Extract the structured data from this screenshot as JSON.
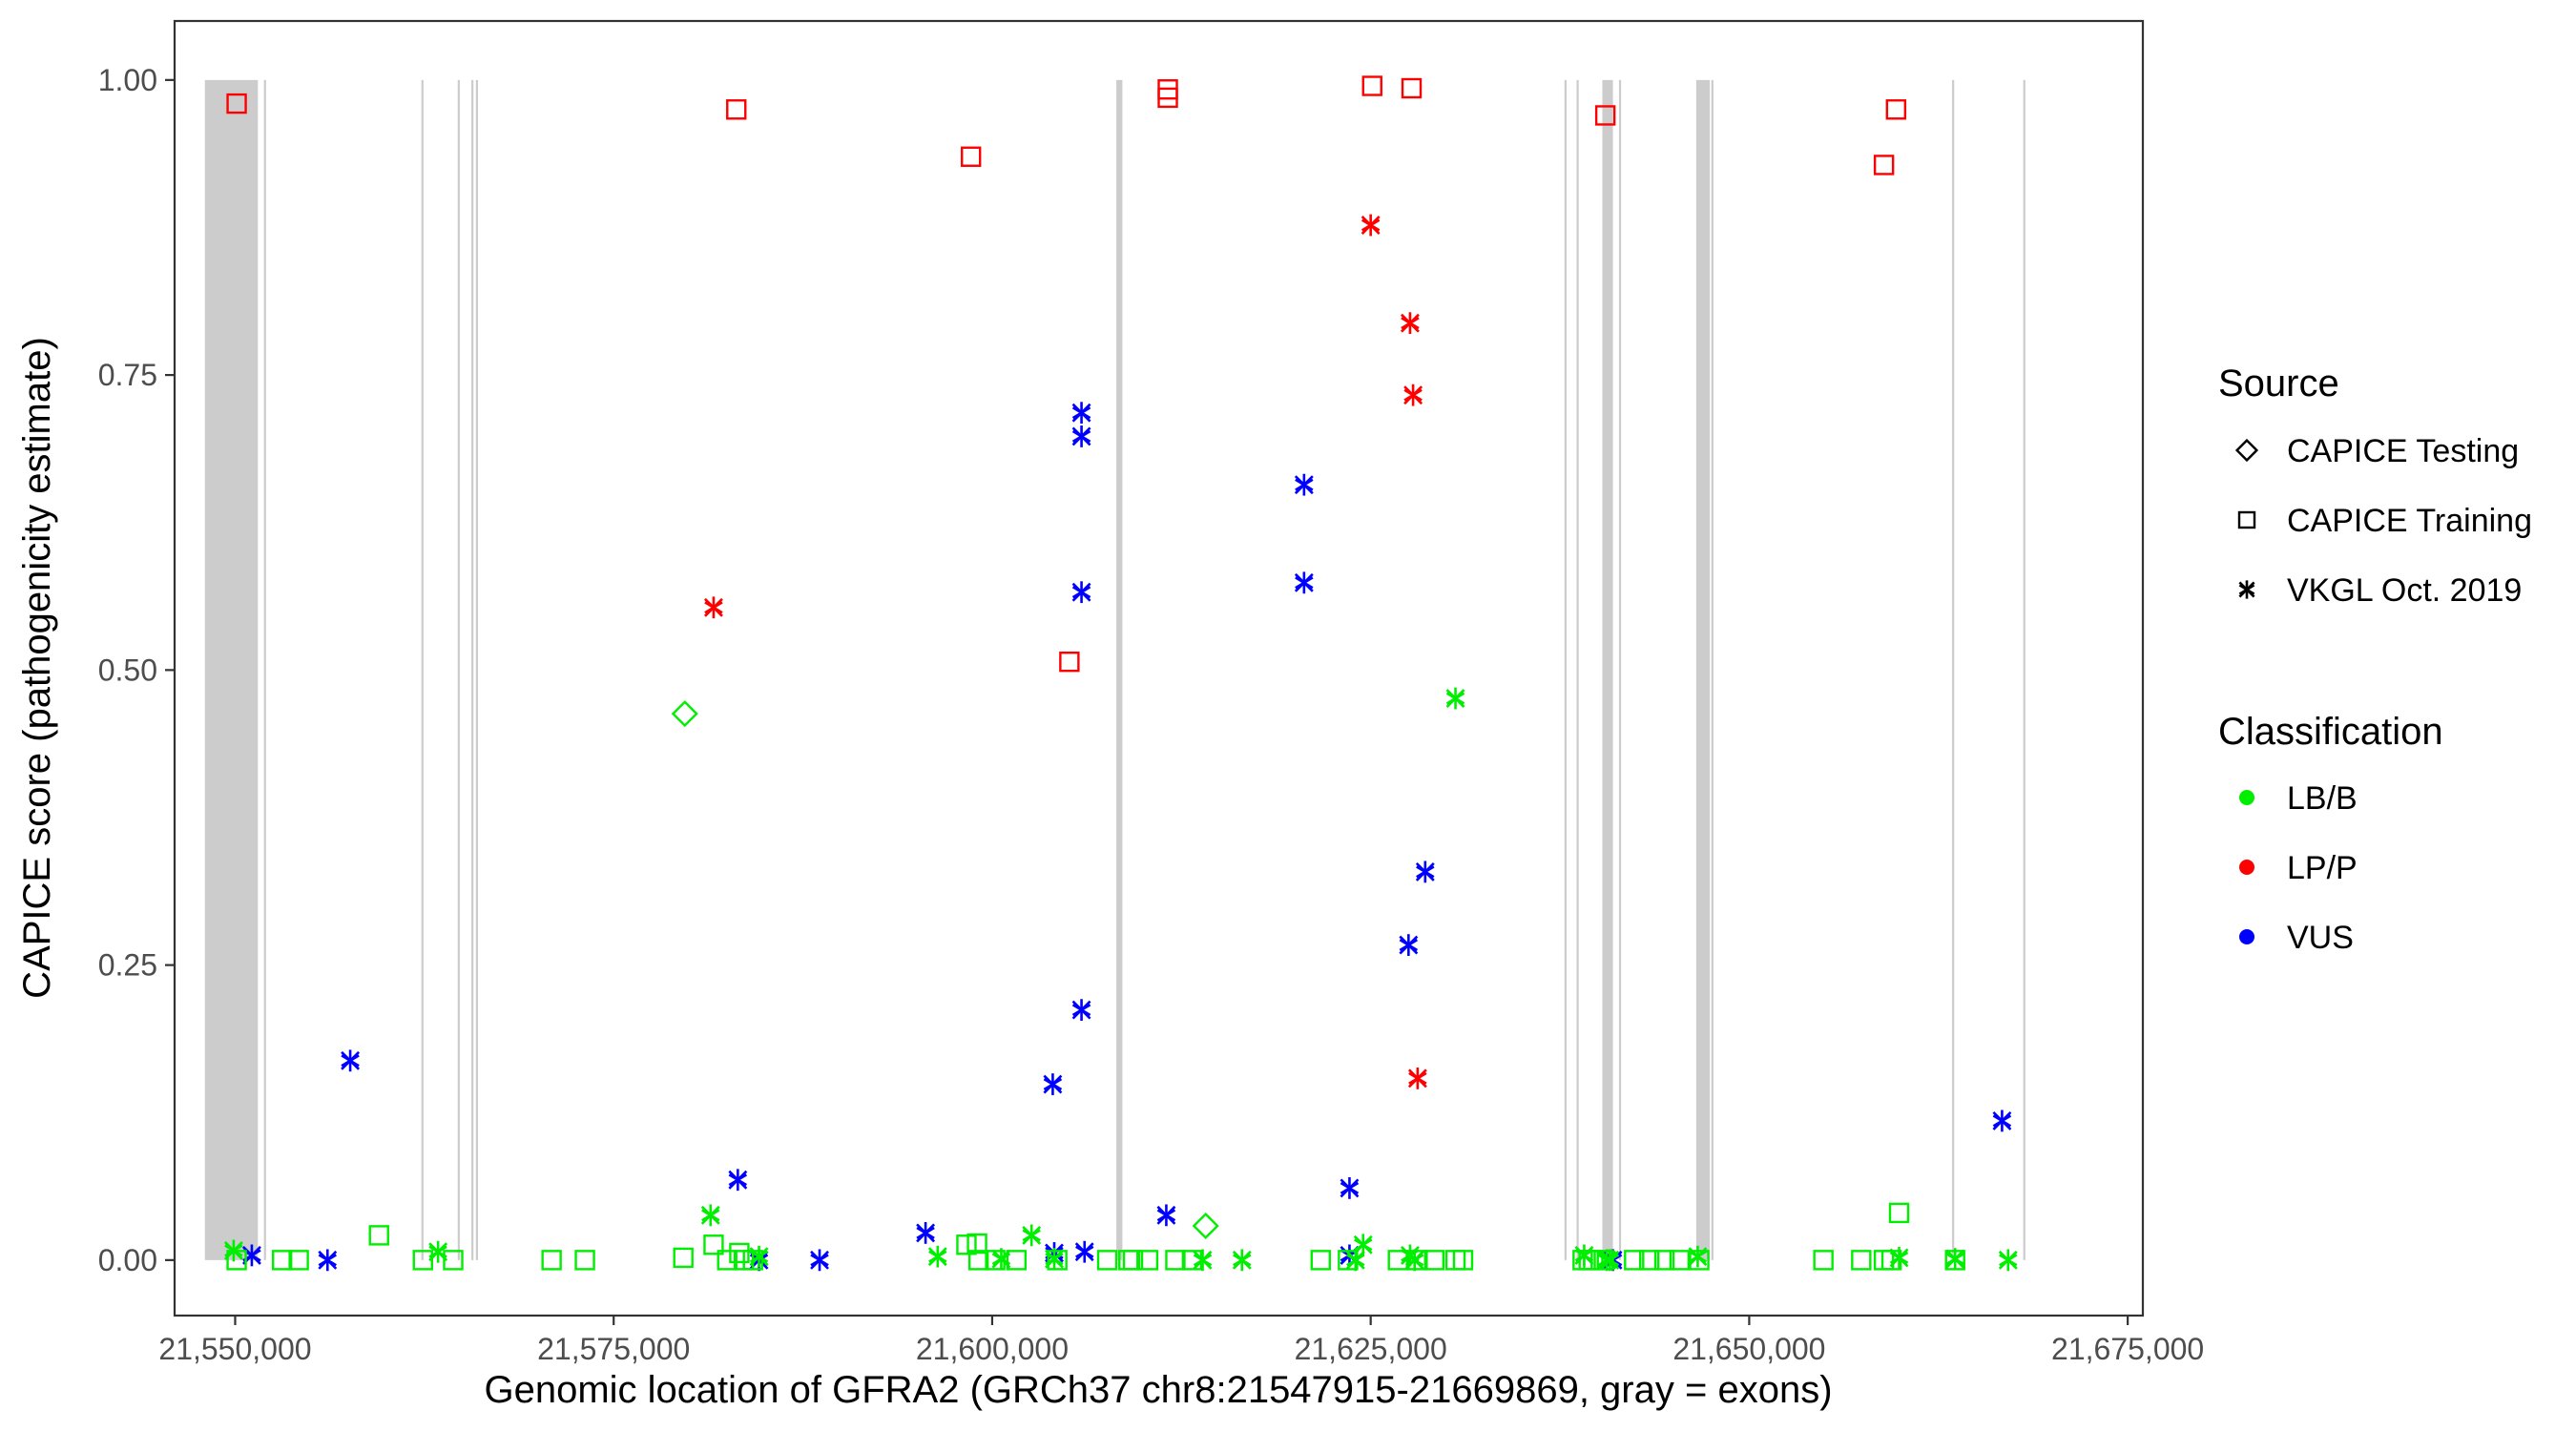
{
  "chart_data": {
    "type": "scatter",
    "xlabel": "Genomic location of GFRA2 (GRCh37 chr8:21547915-21669869, gray = exons)",
    "ylabel": "CAPICE score (pathogenicity estimate)",
    "xlim": [
      21546000,
      21676000
    ],
    "ylim": [
      -0.047,
      1.05
    ],
    "x_ticks": [
      21550000,
      21575000,
      21600000,
      21625000,
      21650000,
      21675000
    ],
    "x_tick_labels": [
      "21,550,000",
      "21,575,000",
      "21,600,000",
      "21,625,000",
      "21,650,000",
      "21,675,000"
    ],
    "y_ticks": [
      0,
      0.25,
      0.5,
      0.75,
      1.0
    ],
    "y_tick_labels": [
      "0.00",
      "0.25",
      "0.50",
      "0.75",
      "1.00"
    ],
    "grid": false,
    "exons": [
      [
        21548000,
        21551500
      ],
      [
        21551900,
        21552000
      ],
      [
        21562300,
        21562400
      ],
      [
        21564700,
        21564800
      ],
      [
        21565600,
        21565700
      ],
      [
        21565900,
        21566000
      ],
      [
        21608200,
        21608600
      ],
      [
        21637800,
        21637900
      ],
      [
        21638600,
        21638700
      ],
      [
        21640300,
        21641000
      ],
      [
        21641400,
        21641500
      ],
      [
        21646500,
        21647400
      ],
      [
        21647500,
        21647600
      ],
      [
        21663400,
        21663500
      ],
      [
        21668100,
        21668200
      ]
    ],
    "legend": {
      "placement": "right",
      "source_title": "Source",
      "source_items": [
        {
          "label": "CAPICE Testing",
          "shape": "diamond"
        },
        {
          "label": "CAPICE Training",
          "shape": "square"
        },
        {
          "label": "VKGL Oct. 2019",
          "shape": "asterisk"
        }
      ],
      "class_title": "Classification",
      "class_items": [
        {
          "label": "LB/B",
          "color": "#00ee00"
        },
        {
          "label": "LP/P",
          "color": "#ff0000"
        },
        {
          "label": "VUS",
          "color": "#0000ff"
        }
      ]
    },
    "colors": {
      "LB/B": "#00ee00",
      "LP/P": "#ff0000",
      "VUS": "#0000ff"
    },
    "series": [
      {
        "source": "CAPICE Training",
        "classification": "LP/P",
        "points": [
          [
            21550100,
            0.98
          ],
          [
            21583100,
            0.975
          ],
          [
            21598600,
            0.935
          ],
          [
            21605100,
            0.507
          ],
          [
            21611600,
            0.985
          ],
          [
            21611600,
            0.992
          ],
          [
            21625100,
            0.995
          ],
          [
            21627700,
            0.993
          ],
          [
            21640500,
            0.97
          ],
          [
            21658900,
            0.928
          ],
          [
            21659700,
            0.975
          ]
        ]
      },
      {
        "source": "VKGL Oct. 2019",
        "classification": "LP/P",
        "points": [
          [
            21581600,
            0.553
          ],
          [
            21625000,
            0.877
          ],
          [
            21627600,
            0.794
          ],
          [
            21627800,
            0.733
          ],
          [
            21628100,
            0.154
          ]
        ]
      },
      {
        "source": "VKGL Oct. 2019",
        "classification": "VUS",
        "points": [
          [
            21551100,
            0.004
          ],
          [
            21556100,
            0.0
          ],
          [
            21557600,
            0.169
          ],
          [
            21583200,
            0.068
          ],
          [
            21584600,
            0.0
          ],
          [
            21588600,
            0.0
          ],
          [
            21595600,
            0.023
          ],
          [
            21604000,
            0.149
          ],
          [
            21604100,
            0.006
          ],
          [
            21605900,
            0.718
          ],
          [
            21605900,
            0.698
          ],
          [
            21605900,
            0.566
          ],
          [
            21605900,
            0.212
          ],
          [
            21606100,
            0.007
          ],
          [
            21611500,
            0.038
          ],
          [
            21620600,
            0.657
          ],
          [
            21620600,
            0.574
          ],
          [
            21623600,
            0.061
          ],
          [
            21623600,
            0.004
          ],
          [
            21627500,
            0.267
          ],
          [
            21628600,
            0.329
          ],
          [
            21641000,
            0.0
          ],
          [
            21666700,
            0.118
          ]
        ]
      },
      {
        "source": "VKGL Oct. 2019",
        "classification": "LB/B",
        "points": [
          [
            21549900,
            0.008
          ],
          [
            21563400,
            0.007
          ],
          [
            21581400,
            0.038
          ],
          [
            21584600,
            0.003
          ],
          [
            21596400,
            0.003
          ],
          [
            21600600,
            0.001
          ],
          [
            21602600,
            0.021
          ],
          [
            21604100,
            0.001
          ],
          [
            21613900,
            0.0
          ],
          [
            21616500,
            0.0
          ],
          [
            21624000,
            0.0
          ],
          [
            21624500,
            0.013
          ],
          [
            21627600,
            0.004
          ],
          [
            21627900,
            0.0
          ],
          [
            21630600,
            0.476
          ],
          [
            21639100,
            0.004
          ],
          [
            21640600,
            0.0
          ],
          [
            21640800,
            0.0
          ],
          [
            21646600,
            0.003
          ],
          [
            21659900,
            0.002
          ],
          [
            21663600,
            0.001
          ],
          [
            21667100,
            0.0
          ]
        ]
      },
      {
        "source": "CAPICE Training",
        "classification": "LB/B",
        "points": [
          [
            21550100,
            0.0
          ],
          [
            21553100,
            0.0
          ],
          [
            21554200,
            0.0
          ],
          [
            21559500,
            0.021
          ],
          [
            21562400,
            0.0
          ],
          [
            21564400,
            0.0
          ],
          [
            21570900,
            0.0
          ],
          [
            21573100,
            0.0
          ],
          [
            21579600,
            0.002
          ],
          [
            21581600,
            0.013
          ],
          [
            21582500,
            0.0
          ],
          [
            21583300,
            0.006
          ],
          [
            21583600,
            0.0
          ],
          [
            21584200,
            0.0
          ],
          [
            21598300,
            0.013
          ],
          [
            21599000,
            0.014
          ],
          [
            21599100,
            0.0
          ],
          [
            21600200,
            0.0
          ],
          [
            21601600,
            0.0
          ],
          [
            21604300,
            0.0
          ],
          [
            21607600,
            0.0
          ],
          [
            21609000,
            0.0
          ],
          [
            21609300,
            0.0
          ],
          [
            21610300,
            0.0
          ],
          [
            21612100,
            0.0
          ],
          [
            21613200,
            0.0
          ],
          [
            21621700,
            0.0
          ],
          [
            21623500,
            0.0
          ],
          [
            21626800,
            0.0
          ],
          [
            21628100,
            0.0
          ],
          [
            21629200,
            0.0
          ],
          [
            21630600,
            0.0
          ],
          [
            21631100,
            0.0
          ],
          [
            21639000,
            0.0
          ],
          [
            21639400,
            0.0
          ],
          [
            21639700,
            0.0
          ],
          [
            21640400,
            0.0
          ],
          [
            21642400,
            0.0
          ],
          [
            21643400,
            0.0
          ],
          [
            21644400,
            0.0
          ],
          [
            21645400,
            0.0
          ],
          [
            21646700,
            0.0
          ],
          [
            21654900,
            0.0
          ],
          [
            21657400,
            0.0
          ],
          [
            21658900,
            0.0
          ],
          [
            21659400,
            0.0
          ],
          [
            21659900,
            0.04
          ],
          [
            21663600,
            0.0
          ]
        ]
      },
      {
        "source": "CAPICE Testing",
        "classification": "LB/B",
        "points": [
          [
            21579700,
            0.463
          ],
          [
            21614100,
            0.029
          ]
        ]
      }
    ]
  }
}
